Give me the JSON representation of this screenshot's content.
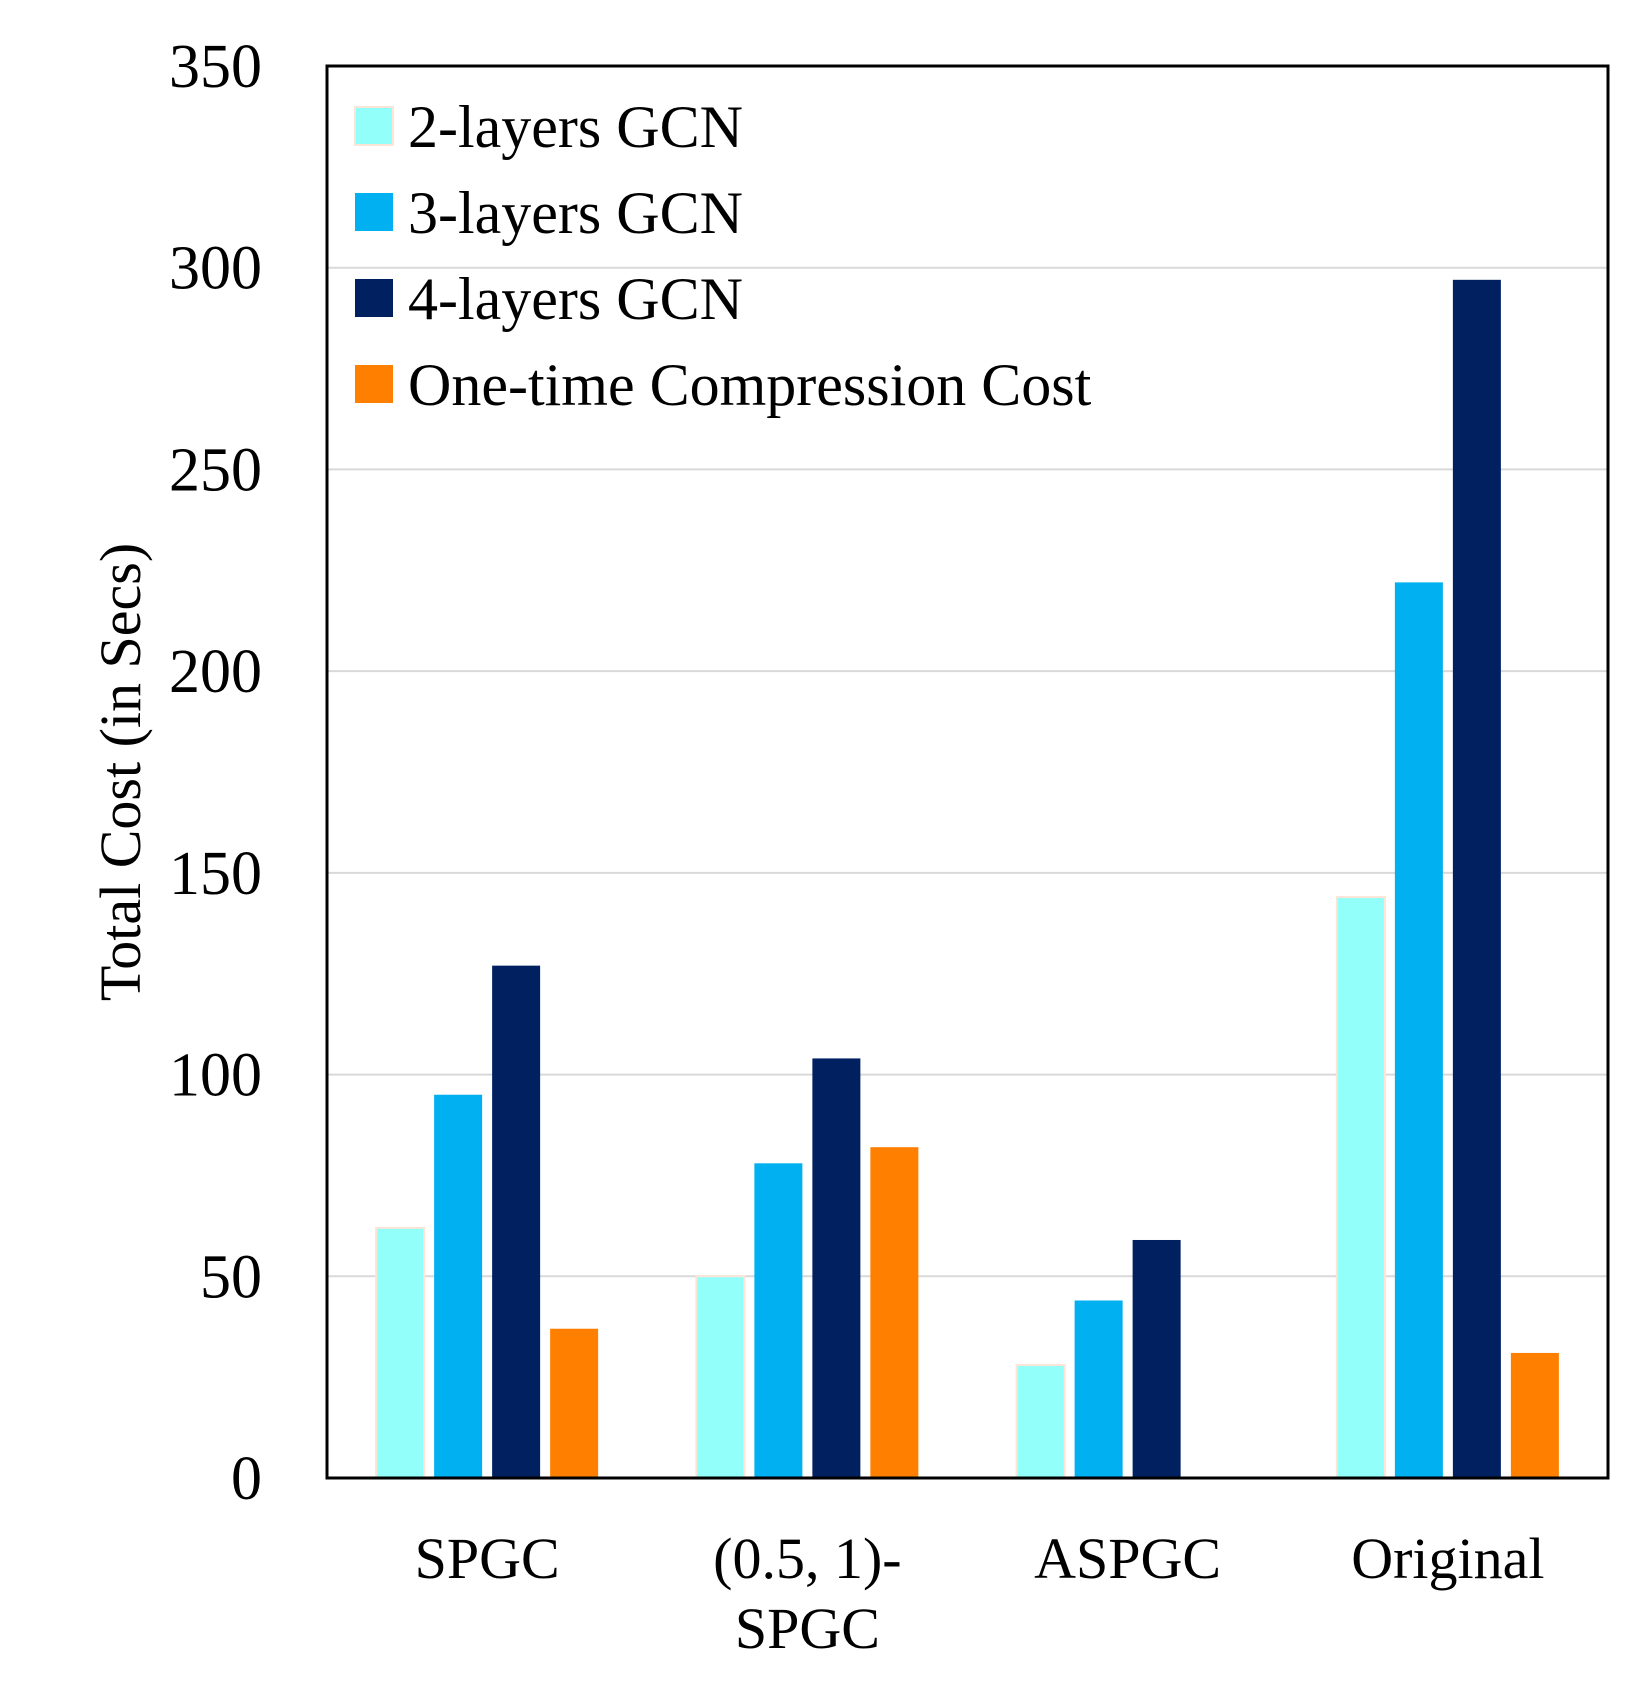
{
  "chart_data": {
    "type": "bar",
    "title": "",
    "xlabel": "",
    "ylabel": "Total Cost (in Secs)",
    "ylim": [
      0,
      350
    ],
    "yticks": [
      0,
      50,
      100,
      150,
      200,
      250,
      300,
      350
    ],
    "grid": "horizontal",
    "legend_position": "top-left",
    "categories": [
      [
        "SPGC"
      ],
      [
        "(0.5, 1)-",
        "SPGC"
      ],
      [
        "ASPGC"
      ],
      [
        "Original"
      ]
    ],
    "series": [
      {
        "name": "2-layers GCN",
        "color": "#93FFFB",
        "values": [
          62,
          50,
          28,
          144
        ]
      },
      {
        "name": "3-layers GCN",
        "color": "#00B0F0",
        "values": [
          95,
          78,
          44,
          222
        ]
      },
      {
        "name": "4-layers GCN",
        "color": "#002060",
        "values": [
          127,
          104,
          59,
          297
        ]
      },
      {
        "name": "One-time Compression Cost",
        "color": "#FF8000",
        "values": [
          37,
          82,
          null,
          31
        ]
      }
    ]
  }
}
